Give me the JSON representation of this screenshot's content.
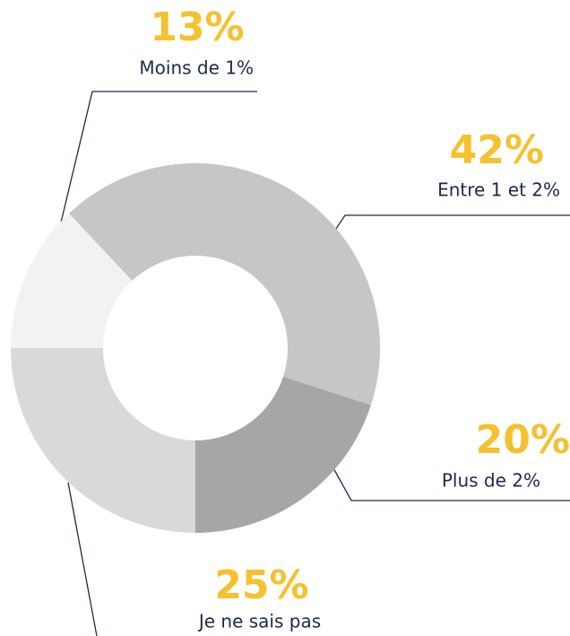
{
  "chart_data": {
    "type": "donut",
    "categories": [
      "Moins de 1%",
      "Entre 1 et 2%",
      "Plus de 2%",
      "Je ne sais pas"
    ],
    "values": [
      13,
      42,
      20,
      25
    ],
    "value_labels": [
      "13%",
      "42%",
      "20%",
      "25%"
    ],
    "colors": [
      "#f2f2f2",
      "#c6c6c6",
      "#a6a6a6",
      "#d9d9d9"
    ]
  }
}
